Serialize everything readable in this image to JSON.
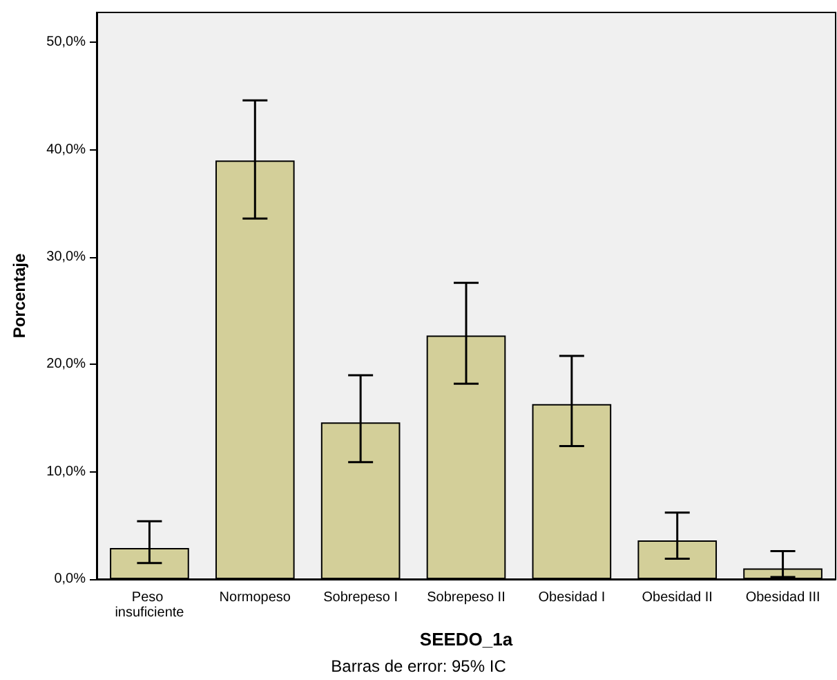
{
  "chart_data": {
    "type": "bar",
    "categories": [
      "Peso insuficiente",
      "Normopeso",
      "Sobrepeso I",
      "Sobrepeso II",
      "Obesidad I",
      "Obesidad II",
      "Obesidad III"
    ],
    "values": [
      2.9,
      39.0,
      14.6,
      22.7,
      16.3,
      3.6,
      1.0
    ],
    "errors": [
      [
        1.5,
        5.4
      ],
      [
        33.6,
        44.6
      ],
      [
        10.9,
        19.0
      ],
      [
        18.2,
        27.6
      ],
      [
        12.4,
        20.8
      ],
      [
        1.9,
        6.2
      ],
      [
        0.2,
        2.6
      ]
    ],
    "color": "#d3cf99",
    "xlabel": "SEEDO_1a",
    "ylabel": "Porcentaje",
    "annotations": [
      "Barras de error: 95% IC"
    ],
    "ylim": [
      0,
      52.8
    ],
    "yticks": [
      {
        "value": 0,
        "label": "0,0%"
      },
      {
        "value": 10,
        "label": "10,0%"
      },
      {
        "value": 20,
        "label": "20,0%"
      },
      {
        "value": 30,
        "label": "30,0%"
      },
      {
        "value": 40,
        "label": "40,0%"
      },
      {
        "value": 50,
        "label": "50,0%"
      }
    ]
  }
}
